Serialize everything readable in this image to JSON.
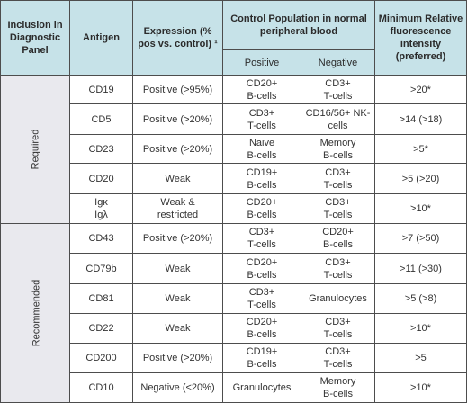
{
  "header": {
    "inclusion": "Inclusion in Diagnostic Panel",
    "antigen": "Antigen",
    "expression": "Expression (% pos vs. control) ¹",
    "control_population": "Control Population in normal peripheral blood",
    "positive": "Positive",
    "negative": "Negative",
    "min_rfi": "Minimum Relative fluorescence intensity (preferred)"
  },
  "groups": [
    {
      "label": "Required"
    },
    {
      "label": "Recommended"
    }
  ],
  "rows": [
    {
      "antigen": [
        "CD19"
      ],
      "expression": [
        "Positive (>95%)"
      ],
      "positive": [
        "CD20+",
        "B-cells"
      ],
      "negative": [
        "CD3+",
        "T-cells"
      ],
      "rfi": [
        ">20*"
      ]
    },
    {
      "antigen": [
        "CD5"
      ],
      "expression": [
        "Positive (>20%)"
      ],
      "positive": [
        "CD3+",
        "T-cells"
      ],
      "negative": [
        "CD16/56+ NK-",
        "cells"
      ],
      "rfi": [
        ">14 (>18)"
      ]
    },
    {
      "antigen": [
        "CD23"
      ],
      "expression": [
        "Positive (>20%)"
      ],
      "positive": [
        "Naive",
        "B-cells"
      ],
      "negative": [
        "Memory",
        "B-cells"
      ],
      "rfi": [
        ">5*"
      ]
    },
    {
      "antigen": [
        "CD20"
      ],
      "expression": [
        "Weak"
      ],
      "positive": [
        "CD19+",
        "B-cells"
      ],
      "negative": [
        "CD3+",
        "T-cells"
      ],
      "rfi": [
        ">5 (>20)"
      ]
    },
    {
      "antigen": [
        "Igκ",
        "Igλ"
      ],
      "expression": [
        "Weak &",
        "restricted"
      ],
      "positive": [
        "CD20+",
        "B-cells"
      ],
      "negative": [
        "CD3+",
        "T-cells"
      ],
      "rfi": [
        ">10*"
      ]
    },
    {
      "antigen": [
        "CD43"
      ],
      "expression": [
        "Positive (>20%)"
      ],
      "positive": [
        "CD3+",
        "T-cells"
      ],
      "negative": [
        "CD20+",
        "B-cells"
      ],
      "rfi": [
        ">7 (>50)"
      ]
    },
    {
      "antigen": [
        "CD79b"
      ],
      "expression": [
        "Weak"
      ],
      "positive": [
        "CD20+",
        "B-cells"
      ],
      "negative": [
        "CD3+",
        "T-cells"
      ],
      "rfi": [
        ">11 (>30)"
      ]
    },
    {
      "antigen": [
        "CD81"
      ],
      "expression": [
        "Weak"
      ],
      "positive": [
        "CD3+",
        "T-cells"
      ],
      "negative": [
        "Granulocytes"
      ],
      "rfi": [
        ">5 (>8)"
      ]
    },
    {
      "antigen": [
        "CD22"
      ],
      "expression": [
        "Weak"
      ],
      "positive": [
        "CD20+",
        "B-cells"
      ],
      "negative": [
        "CD3+",
        "T-cells"
      ],
      "rfi": [
        ">10*"
      ]
    },
    {
      "antigen": [
        "CD200"
      ],
      "expression": [
        "Positive (>20%)"
      ],
      "positive": [
        "CD19+",
        "B-cells"
      ],
      "negative": [
        "CD3+",
        "T-cells"
      ],
      "rfi": [
        ">5"
      ]
    },
    {
      "antigen": [
        "CD10"
      ],
      "expression": [
        "Negative (<20%)"
      ],
      "positive": [
        "Granulocytes"
      ],
      "negative": [
        "Memory",
        "B-cells"
      ],
      "rfi": [
        ">10*"
      ]
    }
  ]
}
